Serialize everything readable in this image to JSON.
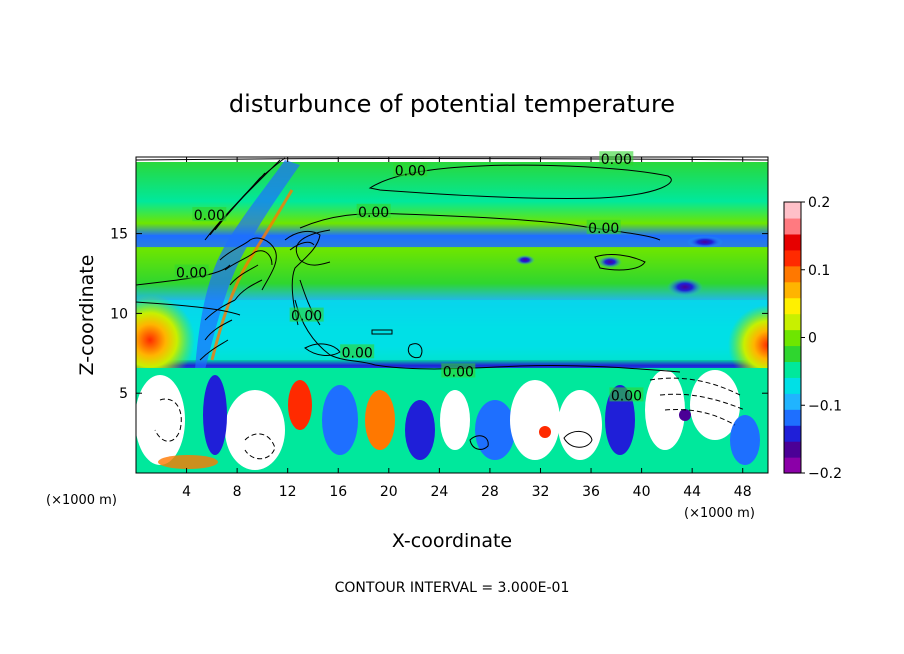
{
  "chart_data": {
    "type": "heatmap",
    "title": "disturbunce of potential temperature",
    "xlabel": "X-coordinate",
    "ylabel": "Z-coordinate",
    "x_unit": "(×1000 m)",
    "z_unit": "(×1000 m)",
    "xlim": [
      0,
      50
    ],
    "ylim": [
      0,
      19.8
    ],
    "x_ticks": [
      4,
      8,
      12,
      16,
      20,
      24,
      28,
      32,
      36,
      40,
      44,
      48
    ],
    "y_ticks": [
      5,
      10,
      15
    ],
    "colorbar": {
      "range": [
        -0.2,
        0.2
      ],
      "ticks": [
        {
          "value": 0.2,
          "label": "0.2"
        },
        {
          "value": 0.1,
          "label": "0.1"
        },
        {
          "value": 0,
          "label": "0"
        },
        {
          "value": -0.1,
          "label": "−0.1"
        },
        {
          "value": -0.2,
          "label": "−0.2"
        }
      ],
      "colors": [
        "#8b00a8",
        "#4b0096",
        "#1f1fd8",
        "#1e6fff",
        "#20b4ff",
        "#00e0e6",
        "#00e89c",
        "#2fd62f",
        "#6ee600",
        "#c8f000",
        "#fff000",
        "#ffb400",
        "#ff7800",
        "#ff2a00",
        "#e60000",
        "#ff7a80",
        "#ffc0c8"
      ]
    },
    "contour_labels": [
      {
        "x": 38,
        "z": 19.6,
        "text": "0.00"
      },
      {
        "x": 21.7,
        "z": 18.9,
        "text": "0.00"
      },
      {
        "x": 5.8,
        "z": 16.1,
        "text": "0.00"
      },
      {
        "x": 18.8,
        "z": 16.3,
        "text": "0.00"
      },
      {
        "x": 37,
        "z": 15.3,
        "text": "0.00"
      },
      {
        "x": 4.4,
        "z": 12.5,
        "text": "0.00"
      },
      {
        "x": 13.5,
        "z": 9.8,
        "text": "0.00"
      },
      {
        "x": 17.5,
        "z": 7.5,
        "text": "0.00"
      },
      {
        "x": 25.5,
        "z": 6.3,
        "text": "0.00"
      },
      {
        "x": 38.8,
        "z": 4.8,
        "text": "0.00"
      }
    ],
    "grid": false
  },
  "footer": "CONTOUR INTERVAL = 3.000E-01"
}
